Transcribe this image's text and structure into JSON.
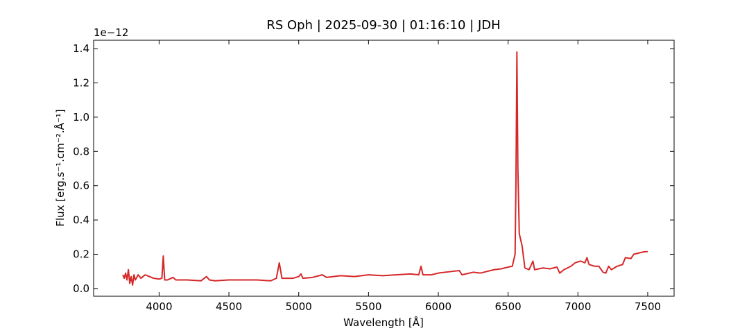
{
  "chart_data": {
    "type": "line",
    "title": "RS Oph | 2025-09-30 | 01:16:10 | JDH",
    "x_label": "Wavelength [Å]",
    "y_label": "Flux [erg.s⁻¹.cm⁻².Å⁻¹]",
    "y_offset_label": "1e−12",
    "xlim": [
      3531,
      7689
    ],
    "ylim": [
      -0.045,
      1.449
    ],
    "xticks": [
      4000,
      4500,
      5000,
      5500,
      6000,
      6500,
      7000,
      7500
    ],
    "yticks": [
      {
        "value": 0,
        "label": "0.0"
      },
      0.2,
      0.4,
      0.6,
      0.8,
      {
        "value": 1,
        "label": "1.0"
      },
      1.2,
      1.4
    ],
    "x": [
      3740,
      3750,
      3760,
      3770,
      3780,
      3790,
      3800,
      3810,
      3820,
      3830,
      3850,
      3870,
      3900,
      3930,
      3960,
      4000,
      4020,
      4030,
      4040,
      4060,
      4100,
      4120,
      4200,
      4300,
      4340,
      4360,
      4400,
      4500,
      4600,
      4700,
      4800,
      4840,
      4861,
      4880,
      4920,
      4960,
      5000,
      5016,
      5030,
      5100,
      5169,
      5200,
      5300,
      5400,
      5500,
      5600,
      5700,
      5800,
      5860,
      5876,
      5890,
      5950,
      6000,
      6100,
      6150,
      6170,
      6250,
      6300,
      6350,
      6400,
      6450,
      6500,
      6530,
      6550,
      6556,
      6563,
      6570,
      6580,
      6600,
      6620,
      6650,
      6678,
      6690,
      6750,
      6800,
      6850,
      6870,
      6900,
      6950,
      6980,
      7020,
      7050,
      7065,
      7080,
      7120,
      7150,
      7180,
      7200,
      7220,
      7240,
      7280,
      7320,
      7340,
      7380,
      7400,
      7450,
      7480,
      7500
    ],
    "series": [
      {
        "color": "#d62728",
        "values": [
          0.08,
          0.06,
          0.09,
          0.05,
          0.11,
          0.03,
          0.07,
          0.02,
          0.08,
          0.05,
          0.08,
          0.06,
          0.08,
          0.07,
          0.06,
          0.055,
          0.06,
          0.19,
          0.05,
          0.05,
          0.065,
          0.05,
          0.05,
          0.045,
          0.07,
          0.05,
          0.045,
          0.05,
          0.05,
          0.05,
          0.045,
          0.06,
          0.15,
          0.06,
          0.06,
          0.06,
          0.07,
          0.085,
          0.06,
          0.065,
          0.08,
          0.065,
          0.075,
          0.07,
          0.08,
          0.075,
          0.08,
          0.085,
          0.08,
          0.13,
          0.08,
          0.08,
          0.09,
          0.1,
          0.105,
          0.08,
          0.095,
          0.09,
          0.1,
          0.11,
          0.115,
          0.125,
          0.13,
          0.2,
          0.6,
          1.38,
          0.7,
          0.32,
          0.25,
          0.12,
          0.11,
          0.16,
          0.11,
          0.12,
          0.115,
          0.125,
          0.09,
          0.11,
          0.13,
          0.15,
          0.16,
          0.15,
          0.18,
          0.14,
          0.13,
          0.13,
          0.095,
          0.09,
          0.13,
          0.11,
          0.13,
          0.14,
          0.18,
          0.175,
          0.2,
          0.21,
          0.215,
          0.215
        ]
      }
    ]
  }
}
